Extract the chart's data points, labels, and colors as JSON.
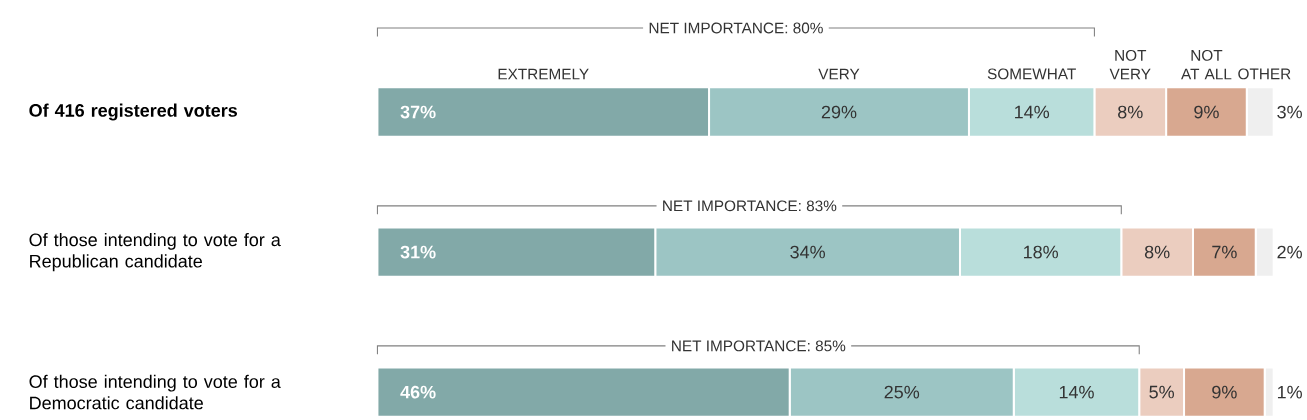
{
  "chart_data": {
    "type": "bar",
    "orientation": "horizontal",
    "stacked": true,
    "legend": "top",
    "tick_labels": "y",
    "categories": [
      "Of 416 registered voters",
      "Of those intending to vote for a Republican candidate",
      "Of those intending to vote for a Democratic candidate"
    ],
    "series": [
      {
        "name": "EXTREMELY",
        "color": "#82a9a8",
        "values": [
          37,
          31,
          46
        ],
        "value_labels": [
          "37%",
          "31%",
          "46%"
        ]
      },
      {
        "name": "VERY",
        "color": "#9cc5c4",
        "values": [
          29,
          34,
          25
        ],
        "value_labels": [
          "29%",
          "34%",
          "25%"
        ]
      },
      {
        "name": "SOMEWHAT",
        "color": "#b9dedb",
        "values": [
          14,
          18,
          14
        ],
        "value_labels": [
          "14%",
          "18%",
          "14%"
        ]
      },
      {
        "name": "NOT VERY",
        "color": "#ebcdbf",
        "values": [
          8,
          8,
          5
        ],
        "value_labels": [
          "8%",
          "8%",
          "5%"
        ]
      },
      {
        "name": "NOT AT ALL",
        "color": "#d8a890",
        "values": [
          9,
          7,
          9
        ],
        "value_labels": [
          "9%",
          "7%",
          "9%"
        ]
      },
      {
        "name": "OTHER",
        "color": "#efefef",
        "values": [
          3,
          2,
          1
        ],
        "value_labels": [
          "3%",
          "2%",
          "1%"
        ]
      }
    ],
    "annotations": [
      "NET IMPORTANCE:  80%",
      "NET IMPORTANCE:  83%",
      "NET IMPORTANCE:  85%"
    ]
  }
}
